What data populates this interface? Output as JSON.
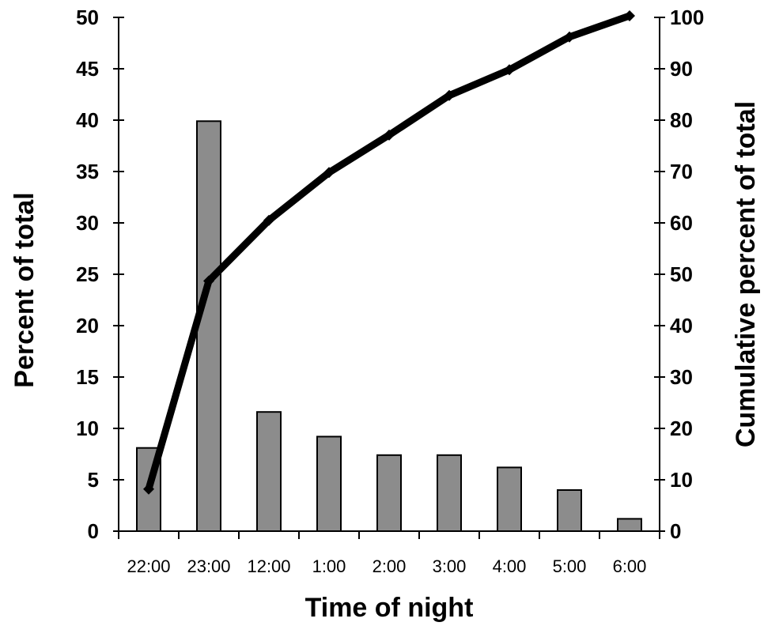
{
  "chart_data": {
    "type": "bar",
    "categories": [
      "22:00",
      "23:00",
      "12:00",
      "1:00",
      "2:00",
      "3:00",
      "4:00",
      "5:00",
      "6:00"
    ],
    "series": [
      {
        "type": "bar",
        "axis": "left",
        "values": [
          8.1,
          39.9,
          11.6,
          9.2,
          7.4,
          7.4,
          6.2,
          4.0,
          1.2
        ]
      },
      {
        "type": "line",
        "axis": "right",
        "marker": "diamond",
        "values": [
          8.2,
          48.7,
          60.5,
          69.8,
          77.1,
          84.8,
          89.8,
          96.2,
          100.3
        ]
      }
    ],
    "xlabel": "Time of night",
    "ylabel": "Percent of  total",
    "y2label": "Cumulative percent of total",
    "ylim": [
      0,
      50
    ],
    "y2lim": [
      0,
      100
    ],
    "yticks": [
      0,
      5,
      10,
      15,
      20,
      25,
      30,
      35,
      40,
      45,
      50
    ],
    "y2ticks": [
      0,
      10,
      20,
      30,
      40,
      50,
      60,
      70,
      80,
      90,
      100
    ],
    "grid": false,
    "legend": "none",
    "colors": {
      "bar_fill": "#8c8c8c",
      "bar_stroke": "#000000",
      "line": "#000000",
      "axis": "#000000"
    }
  }
}
